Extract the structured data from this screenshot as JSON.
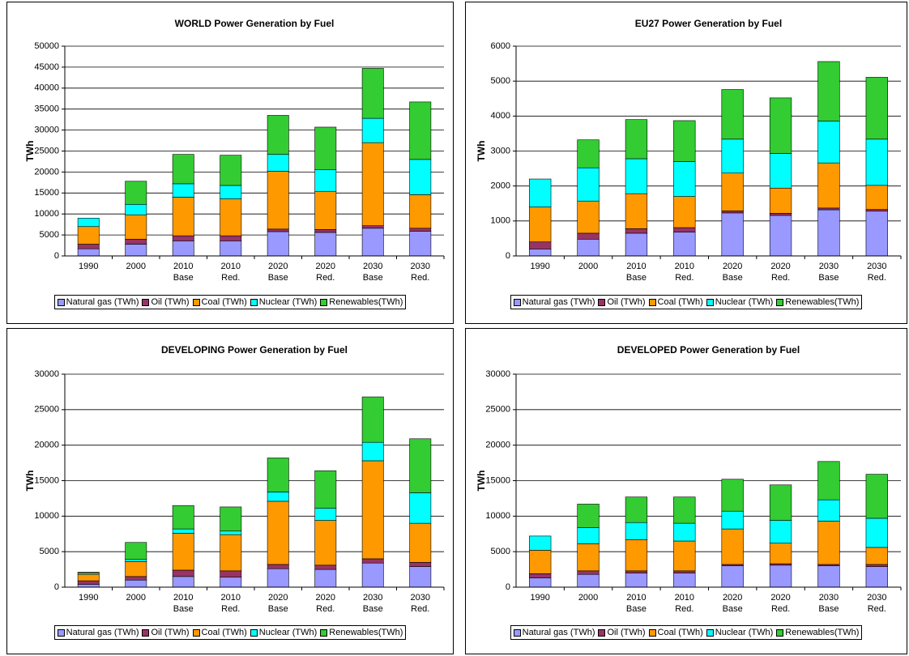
{
  "chart_data": [
    {
      "type": "bar",
      "stacked": true,
      "title": "WORLD Power Generation by Fuel",
      "y_label": "TWh",
      "categories": [
        "1990",
        "2000",
        "2010 Base",
        "2010 Red.",
        "2020 Base",
        "2020 Red.",
        "2030 Base",
        "2030 Red."
      ],
      "ylim": [
        0,
        50000
      ],
      "yticks": [
        0,
        5000,
        10000,
        15000,
        20000,
        25000,
        30000,
        35000,
        40000,
        45000,
        50000
      ],
      "grid": true,
      "series": [
        {
          "name": "Natural gas (TWh)",
          "color": "#9999ff",
          "values": [
            1700,
            2800,
            3600,
            3600,
            5800,
            5600,
            6600,
            5900
          ]
        },
        {
          "name": "Oil (TWh)",
          "color": "#993366",
          "values": [
            1100,
            1200,
            1200,
            1200,
            600,
            700,
            600,
            700
          ]
        },
        {
          "name": "Coal (TWh)",
          "color": "#ff9900",
          "values": [
            4200,
            5800,
            9200,
            8800,
            13800,
            9100,
            19800,
            8000
          ]
        },
        {
          "name": "Nuclear (TWh)",
          "color": "#00ffff",
          "values": [
            2000,
            2500,
            3200,
            3200,
            4000,
            5200,
            5800,
            8400
          ]
        },
        {
          "name": "Renewables(TWh)",
          "color": "#33cc33",
          "values": [
            0,
            5500,
            7000,
            7200,
            9300,
            10100,
            11900,
            13700
          ]
        }
      ]
    },
    {
      "type": "bar",
      "stacked": true,
      "title": "EU27 Power Generation by Fuel",
      "y_label": "TWh",
      "categories": [
        "1990",
        "2000",
        "2010 Base",
        "2010 Red.",
        "2020 Base",
        "2020 Red.",
        "2030 Base",
        "2030 Red."
      ],
      "ylim": [
        0,
        6000
      ],
      "yticks": [
        0,
        1000,
        2000,
        3000,
        4000,
        5000,
        6000
      ],
      "grid": true,
      "series": [
        {
          "name": "Natural gas (TWh)",
          "color": "#9999ff",
          "values": [
            200,
            480,
            650,
            680,
            1230,
            1160,
            1320,
            1280
          ]
        },
        {
          "name": "Oil (TWh)",
          "color": "#993366",
          "values": [
            200,
            170,
            130,
            130,
            60,
            60,
            50,
            50
          ]
        },
        {
          "name": "Coal (TWh)",
          "color": "#ff9900",
          "values": [
            1000,
            920,
            1000,
            890,
            1080,
            720,
            1290,
            690
          ]
        },
        {
          "name": "Nuclear (TWh)",
          "color": "#00ffff",
          "values": [
            800,
            950,
            1000,
            1000,
            970,
            990,
            1200,
            1320
          ]
        },
        {
          "name": "Renewables(TWh)",
          "color": "#33cc33",
          "values": [
            0,
            800,
            1120,
            1170,
            1420,
            1590,
            1700,
            1770
          ]
        }
      ]
    },
    {
      "type": "bar",
      "stacked": true,
      "title": "DEVELOPING Power Generation by Fuel",
      "y_label": "TWh",
      "categories": [
        "1990",
        "2000",
        "2010 Base",
        "2010 Red.",
        "2020 Base",
        "2020 Red.",
        "2030 Base",
        "2030 Red."
      ],
      "ylim": [
        0,
        30000
      ],
      "yticks": [
        0,
        5000,
        10000,
        15000,
        20000,
        25000,
        30000
      ],
      "grid": true,
      "series": [
        {
          "name": "Natural gas (TWh)",
          "color": "#9999ff",
          "values": [
            400,
            1000,
            1500,
            1400,
            2600,
            2500,
            3400,
            2900
          ]
        },
        {
          "name": "Oil (TWh)",
          "color": "#993366",
          "values": [
            500,
            500,
            900,
            900,
            600,
            600,
            600,
            600
          ]
        },
        {
          "name": "Coal (TWh)",
          "color": "#ff9900",
          "values": [
            900,
            2100,
            5200,
            5100,
            8900,
            6300,
            13800,
            5500
          ]
        },
        {
          "name": "Nuclear (TWh)",
          "color": "#00ffff",
          "values": [
            200,
            300,
            600,
            500,
            1300,
            1700,
            2600,
            4300
          ]
        },
        {
          "name": "Renewables(TWh)",
          "color": "#33cc33",
          "values": [
            100,
            2400,
            3300,
            3400,
            4800,
            5300,
            6400,
            7600
          ]
        }
      ]
    },
    {
      "type": "bar",
      "stacked": true,
      "title": "DEVELOPED Power Generation by Fuel",
      "y_label": "TWh",
      "categories": [
        "1990",
        "2000",
        "2010 Base",
        "2010 Red.",
        "2020 Base",
        "2020 Red.",
        "2030 Base",
        "2030 Red."
      ],
      "ylim": [
        0,
        30000
      ],
      "yticks": [
        0,
        5000,
        10000,
        15000,
        20000,
        25000,
        30000
      ],
      "grid": true,
      "series": [
        {
          "name": "Natural gas (TWh)",
          "color": "#9999ff",
          "values": [
            1300,
            1800,
            2000,
            2000,
            3000,
            3100,
            3000,
            2900
          ]
        },
        {
          "name": "Oil (TWh)",
          "color": "#993366",
          "values": [
            600,
            500,
            300,
            300,
            200,
            200,
            200,
            300
          ]
        },
        {
          "name": "Coal (TWh)",
          "color": "#ff9900",
          "values": [
            3300,
            3800,
            4400,
            4200,
            5000,
            2900,
            6100,
            2400
          ]
        },
        {
          "name": "Nuclear (TWh)",
          "color": "#00ffff",
          "values": [
            2000,
            2300,
            2400,
            2500,
            2500,
            3200,
            3000,
            4100
          ]
        },
        {
          "name": "Renewables(TWh)",
          "color": "#33cc33",
          "values": [
            0,
            3300,
            3600,
            3700,
            4500,
            5000,
            5400,
            6200
          ]
        }
      ]
    }
  ]
}
